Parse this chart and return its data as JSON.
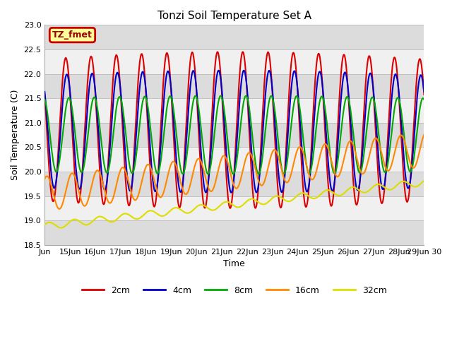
{
  "title": "Tonzi Soil Temperature Set A",
  "xlabel": "Time",
  "ylabel": "Soil Temperature (C)",
  "ylim": [
    18.5,
    23.0
  ],
  "xlim": [
    0,
    360
  ],
  "yticks": [
    18.5,
    19.0,
    19.5,
    20.0,
    20.5,
    21.0,
    21.5,
    22.0,
    22.5,
    23.0
  ],
  "xtick_positions": [
    0,
    24,
    48,
    72,
    96,
    120,
    144,
    168,
    192,
    216,
    240,
    264,
    288,
    312,
    336,
    360
  ],
  "xtick_labels": [
    "Jun",
    "15Jun",
    "16Jun",
    "17Jun",
    "18Jun",
    "19Jun",
    "20Jun",
    "21Jun",
    "22Jun",
    "23Jun",
    "24Jun",
    "25Jun",
    "26Jun",
    "27Jun",
    "28Jun",
    "29Jun 30"
  ],
  "annotation_text": "TZ_fmet",
  "annotation_bg": "#ffff99",
  "annotation_border": "#cc0000",
  "line_colors": [
    "#dd0000",
    "#0000cc",
    "#00aa00",
    "#ff8800",
    "#dddd00"
  ],
  "line_labels": [
    "2cm",
    "4cm",
    "8cm",
    "16cm",
    "32cm"
  ],
  "line_widths": [
    1.5,
    1.5,
    1.5,
    1.5,
    1.5
  ],
  "bg_color": "#ffffff",
  "band_color_light": "#f0f0f0",
  "band_color_dark": "#dcdcdc",
  "figsize": [
    6.4,
    4.8
  ]
}
